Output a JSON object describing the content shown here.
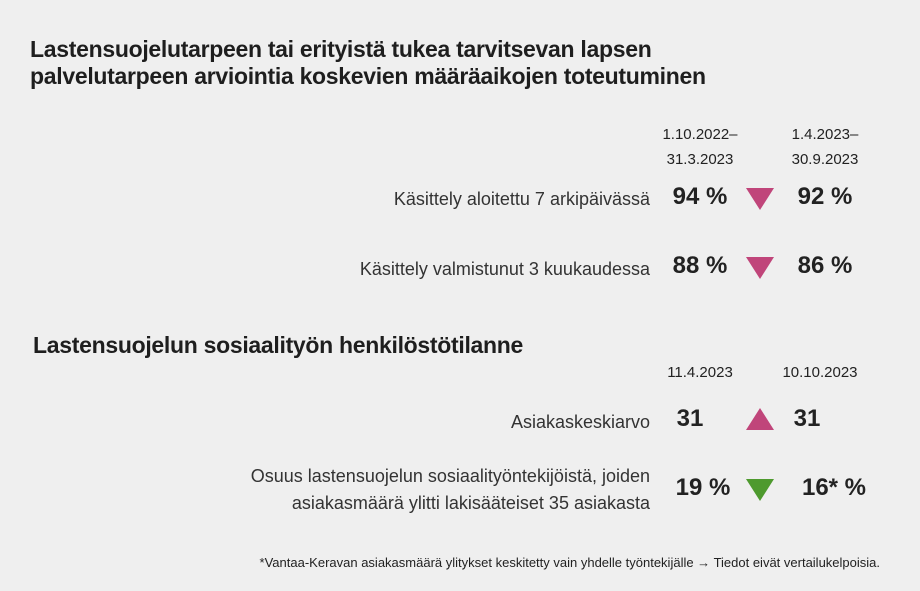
{
  "section1": {
    "title": [
      "Lastensuojelutarpeen tai erityistä tukea tarvitsevan lapsen",
      "palvelutarpeen arviointia koskevien määräaikojen toteutuminen"
    ],
    "periods": [
      [
        "1.10.2022–",
        "31.3.2023"
      ],
      [
        "1.4.2023–",
        "30.9.2023"
      ]
    ],
    "rows": [
      {
        "label": [
          "Käsittely aloitettu 7 arkipäivässä"
        ],
        "values": [
          "94 %",
          "92 %"
        ]
      },
      {
        "label": [
          "Käsittely valmistunut 3 kuukaudessa"
        ],
        "values": [
          "88 %",
          "86 %"
        ]
      }
    ]
  },
  "section2": {
    "title": [
      "Lastensuojelun sosiaalityön henkilöstötilanne"
    ],
    "periods": [
      [
        "11.4.2023"
      ],
      [
        "10.10.2023"
      ]
    ],
    "rows": [
      {
        "label": [
          "Asiakaskeskiarvo"
        ],
        "values": [
          "31",
          "31"
        ]
      },
      {
        "label": [
          "Osuus lastensuojelun sosiaalityöntekijöistä, joiden",
          "asiakasmäärä ylitti lakisääteiset 35 asiakasta"
        ],
        "values": [
          "19 %",
          "16* %"
        ]
      }
    ]
  },
  "footnote": "*Vantaa-Keravan asiakasmäärä ylitykset keskitetty vain yhdelle työntekijälle → Tiedot eivät vertailukelpoisia."
}
